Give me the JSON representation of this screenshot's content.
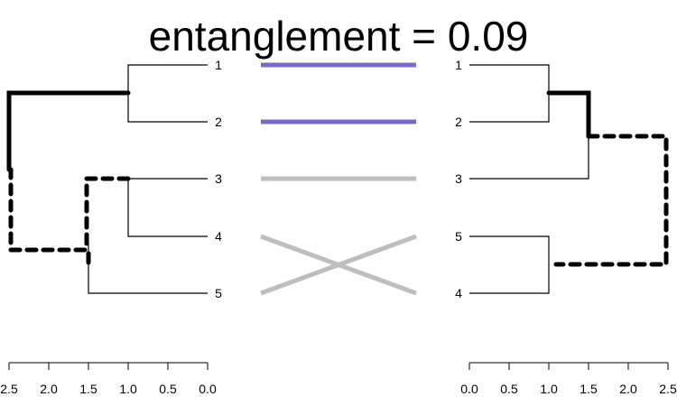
{
  "title": "entanglement = 0.09",
  "chart_data": {
    "type": "tanglegram",
    "title": "entanglement = 0.09",
    "left_tree": {
      "leaf_order": [
        "1",
        "2",
        "3",
        "4",
        "5"
      ],
      "axis": {
        "min": 0.0,
        "max": 2.5,
        "reversed": true,
        "ticks": [
          "0.0",
          "0.5",
          "1.0",
          "1.5",
          "2.0",
          "2.5"
        ]
      },
      "merges": [
        {
          "leaves": [
            "1",
            "2"
          ],
          "height": 1.0
        },
        {
          "leaves": [
            "3",
            "4"
          ],
          "height": 1.0
        },
        {
          "leaves": [
            "3",
            "4",
            "5"
          ],
          "height": 1.5
        },
        {
          "leaves": [
            "1",
            "2",
            "3",
            "4",
            "5"
          ],
          "height": 2.5
        }
      ]
    },
    "right_tree": {
      "leaf_order": [
        "1",
        "2",
        "3",
        "5",
        "4"
      ],
      "axis": {
        "min": 0.0,
        "max": 2.5,
        "reversed": false,
        "ticks": [
          "0.0",
          "0.5",
          "1.0",
          "1.5",
          "2.0",
          "2.5"
        ]
      },
      "merges": [
        {
          "leaves": [
            "1",
            "2"
          ],
          "height": 1.0
        },
        {
          "leaves": [
            "1",
            "2",
            "3"
          ],
          "height": 1.5
        },
        {
          "leaves": [
            "5",
            "4"
          ],
          "height": 1.0
        },
        {
          "leaves": [
            "1",
            "2",
            "3",
            "5",
            "4"
          ],
          "height": 2.5
        }
      ]
    },
    "connectors": [
      {
        "from": "1",
        "to": "1",
        "color": "#7b68ce"
      },
      {
        "from": "2",
        "to": "2",
        "color": "#7b68ce"
      },
      {
        "from": "3",
        "to": "3",
        "color": "#bebebe"
      },
      {
        "from": "4",
        "to": "4",
        "color": "#bebebe"
      },
      {
        "from": "5",
        "to": "5",
        "color": "#bebebe"
      }
    ],
    "colors": {
      "tree_line": "#000000",
      "highlight_line": "#000000"
    }
  }
}
